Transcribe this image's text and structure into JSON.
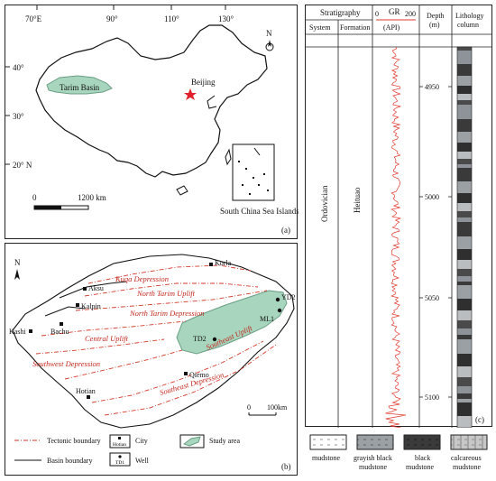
{
  "panel_a": {
    "longitudes": [
      "70°E",
      "90°",
      "110°",
      "130°"
    ],
    "latitudes": [
      "40°",
      "30°",
      "20° N"
    ],
    "basin_label": "Tarim Basin",
    "capital_label": "Beijing",
    "scale_label": "1200 km",
    "scale_start": "0",
    "inset_label": "South China Sea Islands",
    "north": "N",
    "tag": "(a)"
  },
  "panel_b": {
    "north": "N",
    "tag": "(b)",
    "structures": [
      "Kuqa Depression",
      "North Tarim Uplift",
      "North Tarim Depression",
      "Central Uplift",
      "Southwest Depression",
      "Southeast Uplift",
      "Southeast Depression"
    ],
    "cities": [
      "Korla",
      "Aksu",
      "Kalpin",
      "Kashi",
      "Bachu",
      "Qiemo",
      "Hotian"
    ],
    "wells": [
      "YD2",
      "ML1",
      "TD2"
    ],
    "scale_start": "0",
    "scale_label": "100km",
    "legend": {
      "tectonic": "Tectonic boundary",
      "basin": "Basin boundary",
      "city_sym": "Hotian",
      "city": "City",
      "well_sym": "TD1",
      "well": "Well",
      "study": "Study area"
    }
  },
  "panel_c": {
    "tag": "(c)",
    "header": {
      "stratigraphy": "Stratigraphy",
      "system": "System",
      "formation": "Formation",
      "gr": "GR",
      "gr_min": "0",
      "gr_max": "200",
      "gr_unit": "(API)",
      "depth": "Depth",
      "depth_unit": "(m)",
      "lithology": "Lithology",
      "lithology2": "column"
    },
    "system_name": "Ordovician",
    "formation_name": "Heituao",
    "depth_ticks": [
      "4950",
      "5000",
      "5050",
      "5100"
    ]
  },
  "lith_legend": {
    "mudstone": "mudstone",
    "grayish1": "grayish black",
    "grayish2": "mudstone",
    "black1": "black",
    "black2": "mudstone",
    "calc1": "calcareous",
    "calc2": "mudstone"
  },
  "colors": {
    "study_area": "#a8d5bd",
    "tectonic": "#d23a2a",
    "gr_curve": "#e03a2e"
  }
}
